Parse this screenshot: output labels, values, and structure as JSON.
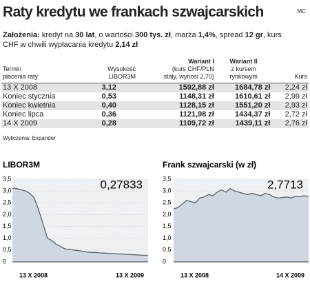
{
  "header": {
    "title": "Raty kredytu we frankach szwajcarskich",
    "credit": "MC"
  },
  "assumptions": [
    "Założenia:",
    " kredyt na ",
    "30 lat",
    ", o wartości ",
    "300 tys. zł",
    ", marża ",
    "1,4%",
    ", spread ",
    "12 gr",
    ", kurs CHF w chwili wypłacania kredytu ",
    "2,14 zł"
  ],
  "table": {
    "header": [
      [
        "Termin",
        "płacenia raty"
      ],
      [
        "Wysokość",
        "LIBOR3M"
      ],
      [
        "Wariant I",
        "(kurs CHF/PLN",
        "stały, wynosi 2,70)"
      ],
      [
        "Wariant II",
        "z kursem",
        "rynkowym"
      ],
      [
        "",
        "",
        "Kurs"
      ]
    ],
    "rows": [
      [
        "13 X 2008",
        "3,12",
        "1592,88 zł",
        "1684,78 zł",
        "2,24 zł"
      ],
      [
        "Koniec stycznia",
        "0,53",
        "1148,31 zł",
        "1610,61 zł",
        "2,99 zł"
      ],
      [
        "Koniec kwietnia",
        "0,40",
        "1128,15 zł",
        "1551,20 zł",
        "2,93 zł"
      ],
      [
        "Koniec lipca",
        "0,36",
        "1121,98 zł",
        "1434,37 zł",
        "2,72 zł"
      ],
      [
        "14 X 2009",
        "0,28",
        "1109,72 zł",
        "1439,11 zł",
        "2,76 zł"
      ]
    ]
  },
  "source": "Wyliczenia: Expander",
  "chart_data": [
    {
      "type": "area",
      "title": "LIBOR3M",
      "annotation": "0,27833",
      "color": "#5a5f66",
      "fill": "#cfd7e0",
      "grid": true,
      "categories": [
        "13 X 2008",
        null,
        null,
        null,
        null,
        null,
        null,
        null,
        null,
        null,
        null,
        null,
        null,
        null,
        null,
        null,
        null,
        null,
        null,
        null,
        null,
        null,
        null,
        null,
        null,
        null,
        null,
        null,
        null,
        null,
        null,
        "13 X 2009"
      ],
      "values": [
        3.12,
        3.1,
        3.05,
        3.0,
        2.9,
        2.7,
        2.2,
        1.6,
        1.0,
        0.9,
        0.75,
        0.65,
        0.55,
        0.53,
        0.5,
        0.48,
        0.45,
        0.42,
        0.4,
        0.4,
        0.38,
        0.37,
        0.36,
        0.35,
        0.34,
        0.33,
        0.32,
        0.31,
        0.3,
        0.29,
        0.28,
        0.27833
      ],
      "ylim": [
        0,
        3.5
      ],
      "yticks": [
        0,
        {
          "value": 0.5,
          "label": "0,5"
        },
        {
          "value": 1,
          "label": "1,0"
        },
        {
          "value": 1.5,
          "label": "1,5"
        },
        {
          "value": 2,
          "label": "2,0"
        },
        {
          "value": 2.5,
          "label": "2,5"
        },
        {
          "value": 3,
          "label": "3,0"
        },
        {
          "value": 3.5,
          "label": "3,5"
        }
      ]
    },
    {
      "type": "area",
      "title": "Frank szwajcarski (w zł)",
      "annotation": "2,7713",
      "color": "#5a5f66",
      "fill": "#cfd7e0",
      "grid": true,
      "categories": [
        "13 X 2008",
        null,
        null,
        null,
        null,
        null,
        null,
        null,
        null,
        null,
        null,
        null,
        null,
        null,
        null,
        null,
        null,
        null,
        null,
        null,
        null,
        null,
        null,
        null,
        null,
        null,
        null,
        null,
        null,
        null,
        null,
        "14 X 2009"
      ],
      "values": [
        2.24,
        2.3,
        2.45,
        2.6,
        2.55,
        2.5,
        2.7,
        2.75,
        2.85,
        2.8,
        2.95,
        3.05,
        2.95,
        3.1,
        3.0,
        2.95,
        2.9,
        2.85,
        2.9,
        2.85,
        2.8,
        2.9,
        2.85,
        2.75,
        2.7,
        2.72,
        2.75,
        2.7,
        2.78,
        2.76,
        2.8,
        2.7713
      ],
      "ylim": [
        0,
        3.5
      ],
      "yticks": [
        0,
        {
          "value": 0.5,
          "label": "0,5"
        },
        {
          "value": 1,
          "label": "1,0"
        },
        {
          "value": 1.5,
          "label": "1,5"
        },
        {
          "value": 2,
          "label": "2,0"
        },
        {
          "value": 2.5,
          "label": "2,5"
        },
        {
          "value": 3,
          "label": "3,0"
        },
        {
          "value": 3.5,
          "label": "3,5"
        }
      ]
    }
  ]
}
